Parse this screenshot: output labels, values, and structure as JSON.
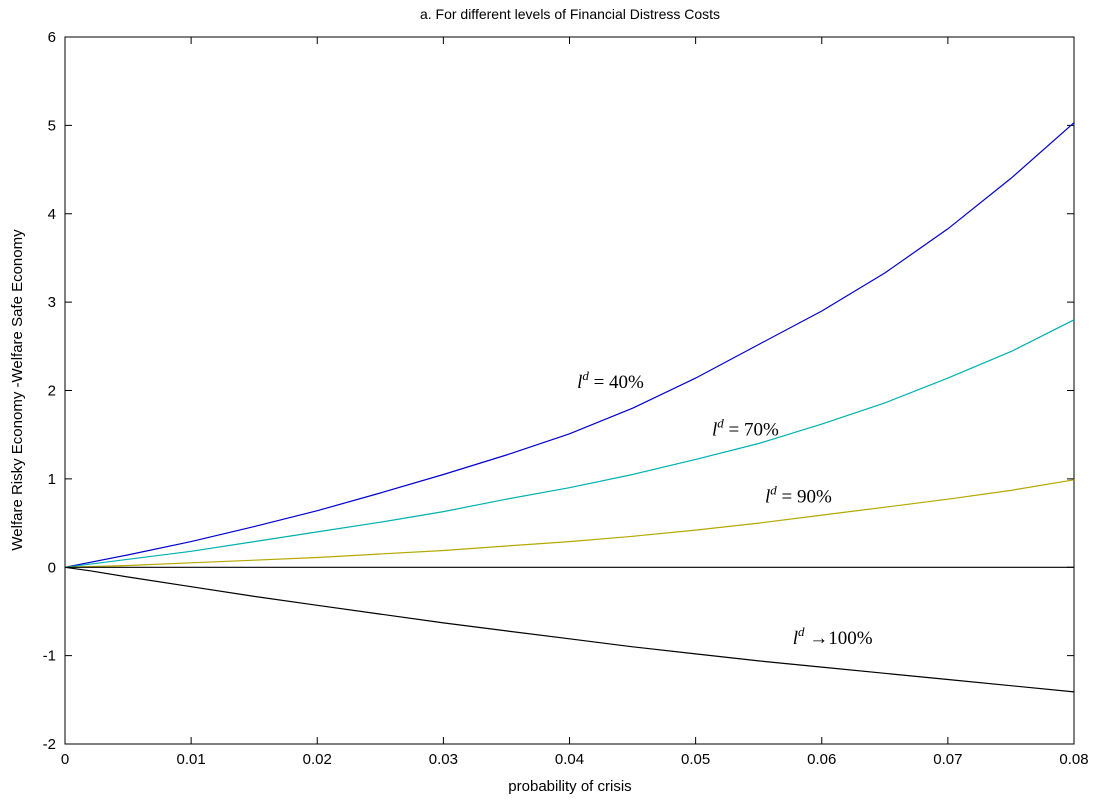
{
  "chart_data": {
    "type": "line",
    "title": "a. For different levels of Financial Distress Costs",
    "xlabel": "probability of crisis",
    "ylabel": "Welfare Risky Economy -Welfare Safe Economy",
    "xlim": [
      0,
      0.08
    ],
    "ylim": [
      -2,
      6
    ],
    "xticks": [
      "0",
      "0.01",
      "0.02",
      "0.03",
      "0.04",
      "0.05",
      "0.06",
      "0.07",
      "0.08"
    ],
    "yticks": [
      "-2",
      "-1",
      "0",
      "1",
      "2",
      "3",
      "4",
      "5",
      "6"
    ],
    "grid": false,
    "legend": "none",
    "series": [
      {
        "name": "l^d = 40%",
        "label_sym": "l",
        "label_sup": "d",
        "label_rest": " = 40%",
        "color": "#0000cc",
        "x": [
          0,
          0.005,
          0.01,
          0.015,
          0.02,
          0.025,
          0.03,
          0.035,
          0.04,
          0.045,
          0.05,
          0.055,
          0.06,
          0.065,
          0.07,
          0.075,
          0.08
        ],
        "y": [
          0,
          0.14,
          0.29,
          0.46,
          0.64,
          0.84,
          1.05,
          1.27,
          1.51,
          1.8,
          2.14,
          2.52,
          2.9,
          3.33,
          3.83,
          4.4,
          5.03
        ]
      },
      {
        "name": "l^d = 70%",
        "label_sym": "l",
        "label_sup": "d",
        "label_rest": " = 70%",
        "color": "#00b0b0",
        "x": [
          0,
          0.005,
          0.01,
          0.015,
          0.02,
          0.025,
          0.03,
          0.035,
          0.04,
          0.045,
          0.05,
          0.055,
          0.06,
          0.065,
          0.07,
          0.075,
          0.08
        ],
        "y": [
          0,
          0.09,
          0.18,
          0.29,
          0.4,
          0.51,
          0.63,
          0.77,
          0.9,
          1.05,
          1.22,
          1.4,
          1.62,
          1.86,
          2.14,
          2.44,
          2.8
        ]
      },
      {
        "name": "l^d = 90%",
        "label_sym": "l",
        "label_sup": "d",
        "label_rest": " = 90%",
        "color": "#b5a800",
        "x": [
          0,
          0.005,
          0.01,
          0.015,
          0.02,
          0.025,
          0.03,
          0.035,
          0.04,
          0.045,
          0.05,
          0.055,
          0.06,
          0.065,
          0.07,
          0.075,
          0.08
        ],
        "y": [
          0,
          0.02,
          0.05,
          0.08,
          0.11,
          0.15,
          0.19,
          0.24,
          0.29,
          0.35,
          0.42,
          0.5,
          0.59,
          0.68,
          0.77,
          0.87,
          0.99
        ]
      },
      {
        "name": "l^d → 100%",
        "label_sym": "l",
        "label_sup": "d",
        "label_rest": " →100%",
        "color": "#000000",
        "x": [
          0,
          0.002,
          0.005,
          0.01,
          0.015,
          0.02,
          0.025,
          0.03,
          0.035,
          0.04,
          0.045,
          0.05,
          0.055,
          0.06,
          0.065,
          0.07,
          0.075,
          0.08
        ],
        "y": [
          0,
          -0.04,
          -0.11,
          -0.22,
          -0.33,
          -0.43,
          -0.53,
          -0.63,
          -0.72,
          -0.81,
          -0.9,
          -0.98,
          -1.06,
          -1.13,
          -1.2,
          -1.27,
          -1.34,
          -1.41
        ]
      },
      {
        "name": "",
        "color": "#000000",
        "x": [
          0,
          0.08
        ],
        "y": [
          0,
          0
        ]
      }
    ],
    "annotations": [
      {
        "series": 0,
        "x": 0.0406,
        "y": 2.03
      },
      {
        "series": 1,
        "x": 0.0513,
        "y": 1.49
      },
      {
        "series": 2,
        "x": 0.0555,
        "y": 0.73
      },
      {
        "series": 3,
        "x": 0.0577,
        "y": -0.87
      }
    ]
  }
}
